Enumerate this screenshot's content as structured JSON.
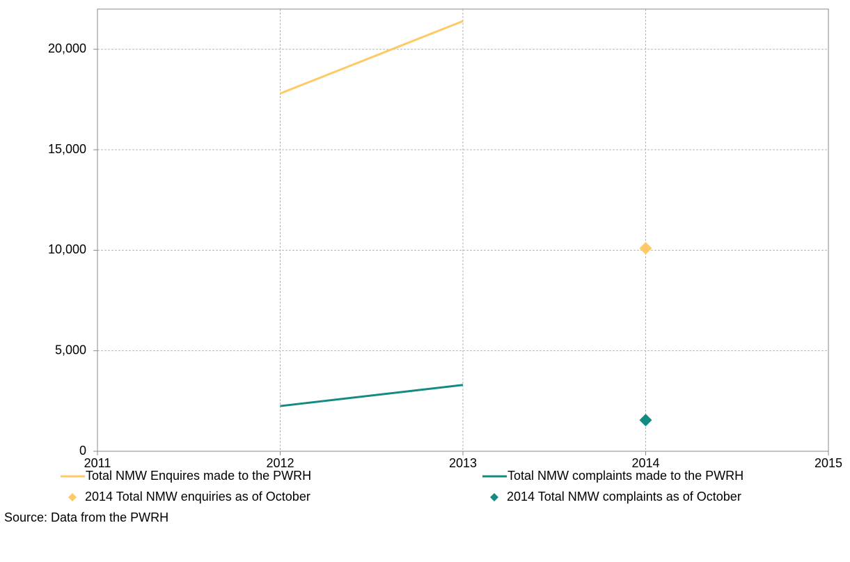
{
  "chart_data": {
    "type": "line",
    "source": "Source: Data from the PWRH",
    "xlim": [
      2011,
      2015
    ],
    "xticks": [
      2011,
      2012,
      2013,
      2014,
      2015
    ],
    "ylim": [
      0,
      22000
    ],
    "yticks": [
      0,
      {
        "value": 5000,
        "label": "5,000"
      },
      {
        "value": 10000,
        "label": "10,000"
      },
      {
        "value": 15000,
        "label": "15,000"
      },
      {
        "value": 20000,
        "label": "20,000"
      }
    ],
    "grid": true,
    "legend": "bottom",
    "series": [
      {
        "name": "Total NMW Enquires made to the PWRH",
        "color": "#ffc966",
        "style": "line",
        "x": [
          2012,
          2013
        ],
        "values": [
          17800,
          21400
        ]
      },
      {
        "name": "Total NMW complaints made to the PWRH",
        "color": "#138a82",
        "style": "line",
        "x": [
          2012,
          2013
        ],
        "values": [
          2250,
          3300
        ]
      },
      {
        "name": "2014 Total NMW enquiries as of October",
        "color": "#ffc966",
        "style": "marker",
        "x": [
          2014
        ],
        "values": [
          10100
        ]
      },
      {
        "name": "2014 Total NMW complaints as of October",
        "color": "#138a82",
        "style": "marker",
        "x": [
          2014
        ],
        "values": [
          1550
        ]
      }
    ]
  }
}
